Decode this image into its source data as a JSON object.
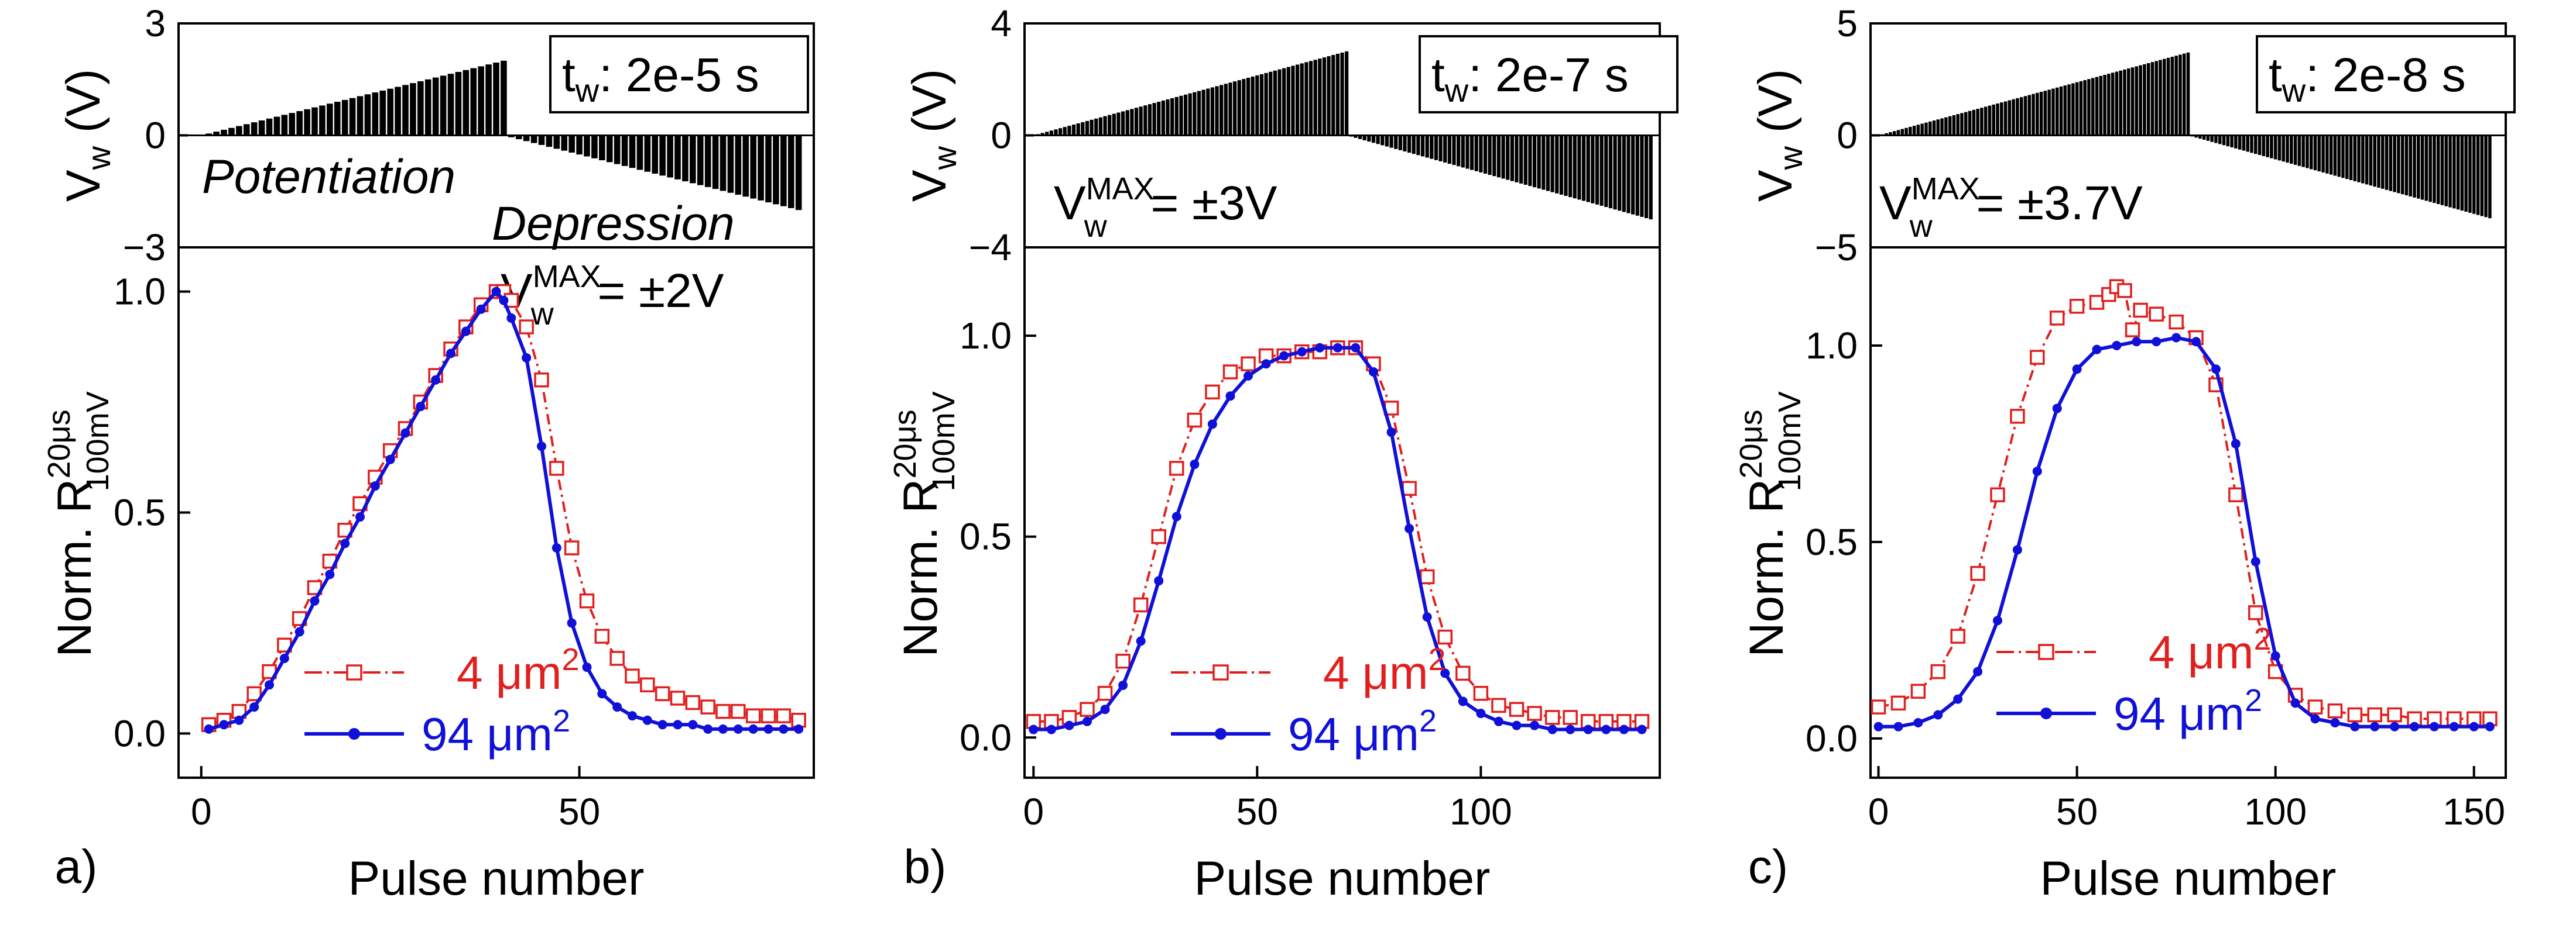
{
  "chart_data": [
    {
      "panel": "a)",
      "type": "line",
      "top_plot": {
        "ylabel_main": "V",
        "ylabel_sub": "w",
        "ylabel_unit": " (V)",
        "yticks": [
          "3",
          "0",
          "−3"
        ],
        "ylim": [
          -3,
          3
        ],
        "tw_main": "t",
        "tw_sub": "w",
        "tw_text": ": 2e-5 s",
        "pulses_potentiation": 40,
        "pulses_total": 79,
        "vmax": 2,
        "annotations": [
          "Potentiation",
          "Depression"
        ]
      },
      "vmax_label": {
        "main": "V",
        "sub": "w",
        "sup": "MAX",
        "text": " = ±2V"
      },
      "ylabel_main": "Norm. R",
      "ylabel_sub": "100mV",
      "ylabel_sup": "20μs",
      "xlabel": "Pulse number",
      "xticks": [
        "0",
        "50"
      ],
      "yticks": [
        "0.0",
        "0.5",
        "1.0"
      ],
      "xlim": [
        -3,
        81
      ],
      "ylim": [
        -0.1,
        1.1
      ],
      "legend": {
        "placement": "bottom-left"
      },
      "series": [
        {
          "name": "4 μm",
          "name_sup": "2",
          "marker": "open-square",
          "color": "#e0201e",
          "x": [
            1,
            3,
            5,
            7,
            9,
            11,
            13,
            15,
            17,
            19,
            21,
            23,
            25,
            27,
            29,
            31,
            33,
            35,
            37,
            39,
            40,
            41,
            43,
            45,
            47,
            49,
            51,
            53,
            55,
            57,
            59,
            61,
            63,
            65,
            67,
            69,
            71,
            73,
            75,
            77,
            79
          ],
          "y": [
            0.02,
            0.03,
            0.05,
            0.09,
            0.14,
            0.2,
            0.26,
            0.33,
            0.39,
            0.46,
            0.52,
            0.58,
            0.64,
            0.69,
            0.75,
            0.81,
            0.87,
            0.92,
            0.97,
            1.0,
            1.0,
            0.98,
            0.92,
            0.8,
            0.6,
            0.42,
            0.3,
            0.22,
            0.17,
            0.13,
            0.11,
            0.09,
            0.08,
            0.07,
            0.06,
            0.05,
            0.05,
            0.04,
            0.04,
            0.04,
            0.03
          ]
        },
        {
          "name": "94 μm",
          "name_sup": "2",
          "marker": "filled-circle",
          "color": "#1010d8",
          "x": [
            1,
            3,
            5,
            7,
            9,
            11,
            13,
            15,
            17,
            19,
            21,
            23,
            25,
            27,
            29,
            31,
            33,
            35,
            37,
            39,
            40,
            41,
            43,
            45,
            47,
            49,
            51,
            53,
            55,
            57,
            59,
            61,
            63,
            65,
            67,
            69,
            71,
            73,
            75,
            77,
            79
          ],
          "y": [
            0.01,
            0.02,
            0.03,
            0.06,
            0.11,
            0.17,
            0.23,
            0.3,
            0.36,
            0.43,
            0.49,
            0.56,
            0.62,
            0.68,
            0.74,
            0.8,
            0.86,
            0.91,
            0.96,
            1.0,
            0.98,
            0.94,
            0.85,
            0.65,
            0.42,
            0.25,
            0.15,
            0.09,
            0.06,
            0.04,
            0.03,
            0.02,
            0.02,
            0.02,
            0.01,
            0.01,
            0.01,
            0.01,
            0.01,
            0.01,
            0.01
          ]
        }
      ]
    },
    {
      "panel": "b)",
      "type": "line",
      "top_plot": {
        "ylabel_main": "V",
        "ylabel_sub": "w",
        "ylabel_unit": " (V)",
        "yticks": [
          "4",
          "0",
          "−4"
        ],
        "ylim": [
          -4,
          4
        ],
        "tw_main": "t",
        "tw_sub": "w",
        "tw_text": ": 2e-7 s",
        "pulses_potentiation": 70,
        "pulses_total": 138,
        "vmax": 3
      },
      "vmax_label": {
        "main": "V",
        "sub": "w",
        "sup": "MAX",
        "text": " = ±3V"
      },
      "ylabel_main": "Norm. R",
      "ylabel_sub": "100mV",
      "ylabel_sup": "20μs",
      "xlabel": "Pulse number",
      "xticks": [
        "0",
        "50",
        "100"
      ],
      "yticks": [
        "0.0",
        "0.5",
        "1.0"
      ],
      "xlim": [
        -2,
        140
      ],
      "ylim": [
        -0.1,
        1.22
      ],
      "legend": {
        "placement": "bottom-left"
      },
      "series": [
        {
          "name": "4 μm",
          "name_sup": "2",
          "marker": "open-square",
          "color": "#e0201e",
          "x": [
            0,
            4,
            8,
            12,
            16,
            20,
            24,
            28,
            32,
            36,
            40,
            44,
            48,
            52,
            56,
            60,
            64,
            68,
            72,
            76,
            80,
            84,
            88,
            92,
            96,
            100,
            104,
            108,
            112,
            116,
            120,
            124,
            128,
            132,
            136
          ],
          "y": [
            0.04,
            0.04,
            0.05,
            0.07,
            0.11,
            0.19,
            0.33,
            0.5,
            0.67,
            0.79,
            0.86,
            0.91,
            0.93,
            0.95,
            0.95,
            0.96,
            0.96,
            0.97,
            0.97,
            0.93,
            0.82,
            0.62,
            0.4,
            0.25,
            0.16,
            0.11,
            0.08,
            0.07,
            0.06,
            0.05,
            0.05,
            0.04,
            0.04,
            0.04,
            0.04
          ]
        },
        {
          "name": "94 μm",
          "name_sup": "2",
          "marker": "filled-circle",
          "color": "#1010d8",
          "x": [
            0,
            4,
            8,
            12,
            16,
            20,
            24,
            28,
            32,
            36,
            40,
            44,
            48,
            52,
            56,
            60,
            64,
            68,
            72,
            76,
            80,
            84,
            88,
            92,
            96,
            100,
            104,
            108,
            112,
            116,
            120,
            124,
            128,
            132,
            136
          ],
          "y": [
            0.02,
            0.02,
            0.03,
            0.04,
            0.07,
            0.13,
            0.24,
            0.39,
            0.55,
            0.68,
            0.78,
            0.85,
            0.9,
            0.93,
            0.95,
            0.96,
            0.97,
            0.97,
            0.97,
            0.91,
            0.76,
            0.52,
            0.3,
            0.16,
            0.09,
            0.06,
            0.04,
            0.03,
            0.03,
            0.02,
            0.02,
            0.02,
            0.02,
            0.02,
            0.02
          ]
        }
      ]
    },
    {
      "panel": "c)",
      "type": "line",
      "top_plot": {
        "ylabel_main": "V",
        "ylabel_sub": "w",
        "ylabel_unit": " (V)",
        "yticks": [
          "5",
          "0",
          "−5"
        ],
        "ylim": [
          -5,
          5
        ],
        "tw_main": "t",
        "tw_sub": "w",
        "tw_text": ": 2e-8 s",
        "pulses_potentiation": 78,
        "pulses_total": 154,
        "vmax": 3.7
      },
      "vmax_label": {
        "main": "V",
        "sub": "w",
        "sup": "MAX",
        "text": " = ±3.7V"
      },
      "ylabel_main": "Norm. R",
      "ylabel_sub": "100mV",
      "ylabel_sup": "20μs",
      "xlabel": "Pulse number",
      "xticks": [
        "0",
        "50",
        "100",
        "150"
      ],
      "yticks": [
        "0.0",
        "0.5",
        "1.0"
      ],
      "xlim": [
        -2,
        158
      ],
      "ylim": [
        -0.1,
        1.25
      ],
      "legend": {
        "placement": "bottom-left"
      },
      "series": [
        {
          "name": "4 μm",
          "name_sup": "2",
          "marker": "open-square",
          "color": "#e0201e",
          "x": [
            0,
            5,
            10,
            15,
            20,
            25,
            30,
            35,
            40,
            45,
            50,
            55,
            58,
            60,
            62,
            64,
            66,
            70,
            75,
            80,
            85,
            90,
            95,
            100,
            105,
            110,
            115,
            120,
            125,
            130,
            135,
            140,
            145,
            150,
            154
          ],
          "y": [
            0.08,
            0.09,
            0.12,
            0.17,
            0.26,
            0.42,
            0.62,
            0.82,
            0.97,
            1.07,
            1.1,
            1.11,
            1.13,
            1.15,
            1.14,
            1.04,
            1.09,
            1.08,
            1.06,
            1.02,
            0.9,
            0.62,
            0.32,
            0.17,
            0.11,
            0.08,
            0.07,
            0.06,
            0.06,
            0.06,
            0.05,
            0.05,
            0.05,
            0.05,
            0.05
          ]
        },
        {
          "name": "94 μm",
          "name_sup": "2",
          "marker": "filled-circle",
          "color": "#1010d8",
          "x": [
            0,
            5,
            10,
            15,
            20,
            25,
            30,
            35,
            40,
            45,
            50,
            55,
            60,
            65,
            70,
            75,
            80,
            85,
            90,
            95,
            100,
            105,
            110,
            115,
            120,
            125,
            130,
            135,
            140,
            145,
            150,
            154
          ],
          "y": [
            0.03,
            0.03,
            0.04,
            0.06,
            0.1,
            0.17,
            0.3,
            0.48,
            0.68,
            0.84,
            0.94,
            0.99,
            1.0,
            1.01,
            1.01,
            1.02,
            1.01,
            0.94,
            0.75,
            0.45,
            0.21,
            0.09,
            0.05,
            0.04,
            0.03,
            0.03,
            0.03,
            0.03,
            0.03,
            0.03,
            0.03,
            0.03
          ]
        }
      ]
    }
  ]
}
